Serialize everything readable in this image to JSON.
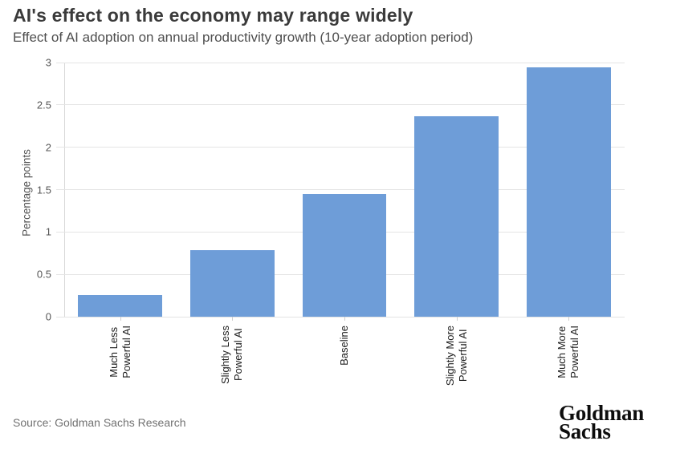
{
  "header": {
    "title": "AI's effect on the economy may range widely",
    "subtitle": "Effect of AI adoption on annual productivity growth (10-year adoption period)"
  },
  "chart_data": {
    "type": "bar",
    "title": "AI's effect on the economy may range widely",
    "subtitle": "Effect of AI adoption on annual productivity growth (10-year adoption period)",
    "categories": [
      "Much Less\nPowerful AI",
      "Slightly Less\nPowerful AI",
      "Baseline",
      "Slightly More\nPowerful AI",
      "Much More\nPowerful AI"
    ],
    "values": [
      0.26,
      0.79,
      1.45,
      2.37,
      2.94
    ],
    "xlabel": "",
    "ylabel": "Percentage points",
    "ylim": [
      0,
      3
    ],
    "yticks": [
      0,
      0.5,
      1,
      1.5,
      2,
      2.5,
      3
    ],
    "ytick_labels": [
      "0",
      "0.5",
      "1",
      "1.5",
      "2",
      "2.5",
      "3"
    ],
    "grid": "horizontal",
    "legend": "none",
    "bar_color": "#6e9dd8"
  },
  "footer": {
    "source": "Source: Goldman Sachs Research",
    "logo": {
      "line1": "Goldman",
      "line2": "Sachs"
    }
  }
}
